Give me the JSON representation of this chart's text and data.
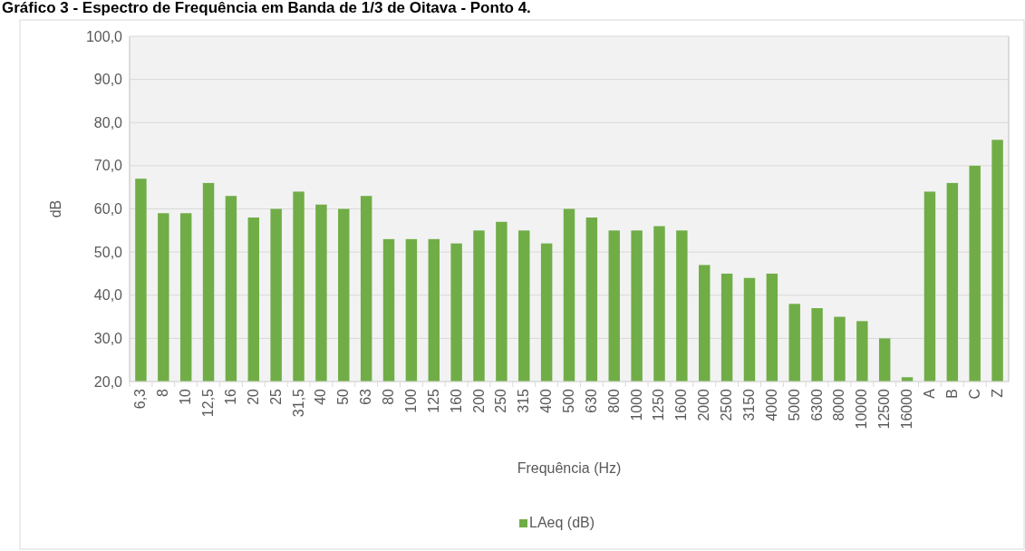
{
  "chart_data": {
    "type": "bar",
    "title": "Gráfico 3 - Espectro de Frequência em Banda de 1/3 de Oitava - Ponto 4.",
    "xlabel": "Frequência (Hz)",
    "ylabel": "dB",
    "categories": [
      "6,3",
      "8",
      "10",
      "12,5",
      "16",
      "20",
      "25",
      "31,5",
      "40",
      "50",
      "63",
      "80",
      "100",
      "125",
      "160",
      "200",
      "250",
      "315",
      "400",
      "500",
      "630",
      "800",
      "1000",
      "1250",
      "1600",
      "2000",
      "2500",
      "3150",
      "4000",
      "5000",
      "6300",
      "8000",
      "10000",
      "12500",
      "16000",
      "A",
      "B",
      "C",
      "Z"
    ],
    "series": [
      {
        "name": "LAeq (dB)",
        "color": "#70ad47",
        "values": [
          67,
          59,
          59,
          66,
          63,
          58,
          60,
          64,
          61,
          60,
          63,
          53,
          53,
          53,
          52,
          55,
          57,
          55,
          52,
          60,
          58,
          55,
          55,
          56,
          55,
          47,
          45,
          44,
          45,
          38,
          37,
          35,
          34,
          30,
          21,
          64,
          66,
          70,
          76
        ]
      }
    ],
    "ylim": [
      20,
      100
    ],
    "yticks": [
      {
        "value": 20,
        "label": "20,0"
      },
      {
        "value": 30,
        "label": "30,0"
      },
      {
        "value": 40,
        "label": "40,0"
      },
      {
        "value": 50,
        "label": "50,0"
      },
      {
        "value": 60,
        "label": "60,0"
      },
      {
        "value": 70,
        "label": "70,0"
      },
      {
        "value": 80,
        "label": "80,0"
      },
      {
        "value": 90,
        "label": "90,0"
      },
      {
        "value": 100,
        "label": "100,0"
      }
    ],
    "grid": true,
    "legend": "bottom"
  }
}
